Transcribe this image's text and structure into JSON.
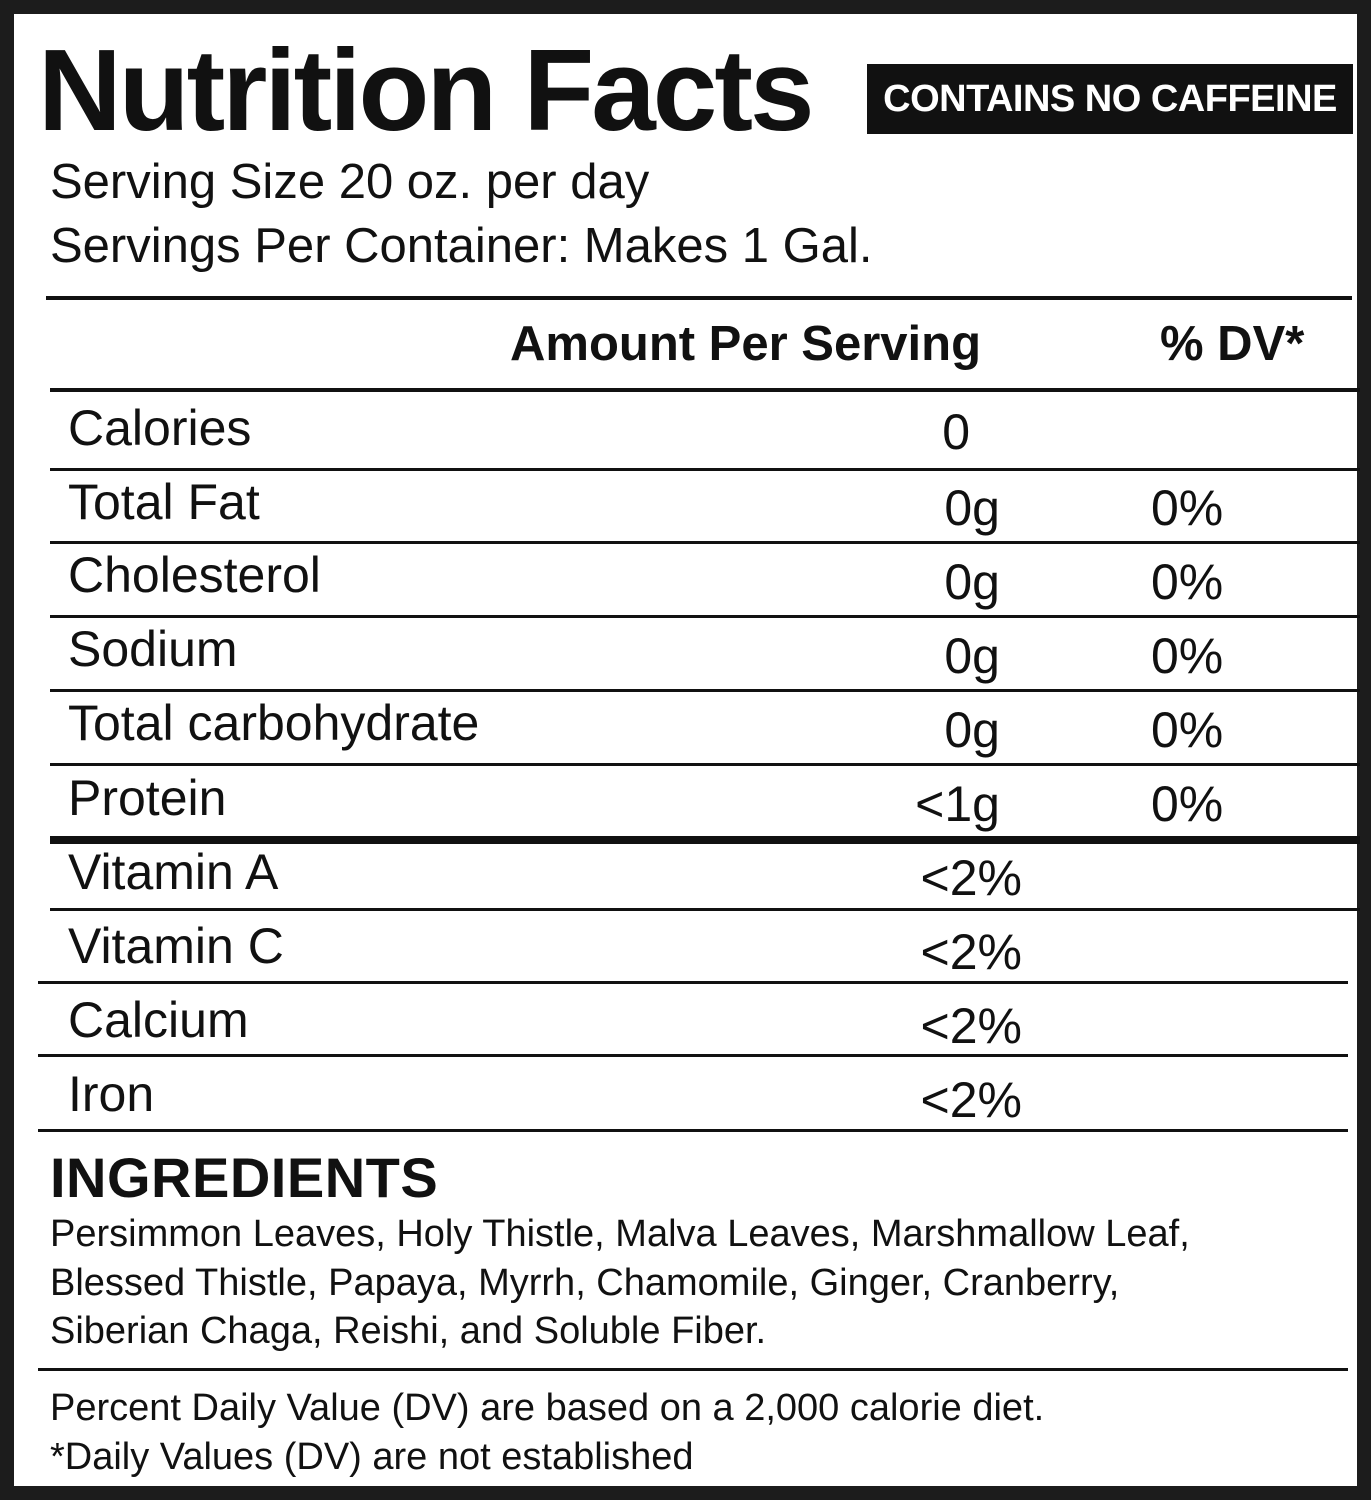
{
  "header": {
    "title": "Nutrition Facts",
    "badge": "CONTAINS NO CAFFEINE"
  },
  "serving": {
    "size": "Serving Size 20 oz. per day",
    "per_container": "Servings Per Container: Makes 1 Gal."
  },
  "columns": {
    "amount": "Amount Per Serving",
    "dv": "% DV*"
  },
  "nutrients": [
    {
      "name": "Calories",
      "amount": "0",
      "dv": ""
    },
    {
      "name": "Total Fat",
      "amount": "0g",
      "dv": "0%"
    },
    {
      "name": "Cholesterol",
      "amount": "0g",
      "dv": "0%"
    },
    {
      "name": "Sodium",
      "amount": "0g",
      "dv": "0%"
    },
    {
      "name": "Total carbohydrate",
      "amount": "0g",
      "dv": "0%"
    },
    {
      "name": "Protein",
      "amount": "<1g",
      "dv": "0%"
    }
  ],
  "vitamins": [
    {
      "name": "Vitamin A",
      "amount": "<2%"
    },
    {
      "name": "Vitamin C",
      "amount": "<2%"
    },
    {
      "name": "Calcium",
      "amount": "<2%"
    },
    {
      "name": "Iron",
      "amount": "<2%"
    }
  ],
  "ingredients": {
    "heading": "INGREDIENTS",
    "lines": [
      "Persimmon Leaves, Holy Thistle, Malva Leaves, Marshmallow Leaf,",
      "Blessed Thistle, Papaya, Myrrh, Chamomile, Ginger, Cranberry,",
      "Siberian Chaga, Reishi, and Soluble Fiber."
    ]
  },
  "footnotes": [
    "Percent Daily Value (DV) are based on a 2,000 calorie diet.",
    "*Daily Values (DV) are not established"
  ]
}
